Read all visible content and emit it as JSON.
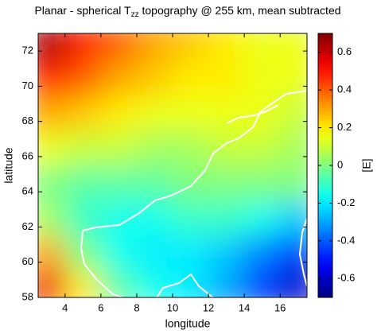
{
  "chart_data": {
    "type": "heatmap",
    "title": [
      "Planar - spherical T",
      "zz",
      " topography @ 255 km, mean subtracted"
    ],
    "xlabel": "longitude",
    "ylabel": "latitude",
    "colorbar_label": "[E]",
    "colormap": "jet",
    "x": [
      3,
      5,
      7,
      9,
      11,
      13,
      15,
      17
    ],
    "y": [
      58.5,
      60.5,
      62.5,
      64.5,
      66.5,
      68.5,
      70.5,
      72.5
    ],
    "z": [
      [
        0.55,
        0.2,
        -0.05,
        -0.15,
        -0.2,
        -0.3,
        -0.45,
        -0.6
      ],
      [
        0.3,
        0.0,
        -0.15,
        -0.2,
        -0.2,
        -0.25,
        -0.35,
        -0.45
      ],
      [
        0.05,
        -0.1,
        -0.15,
        -0.15,
        -0.1,
        -0.1,
        -0.15,
        -0.25
      ],
      [
        0.0,
        -0.05,
        -0.05,
        -0.05,
        0.0,
        0.0,
        0.0,
        0.0
      ],
      [
        0.15,
        0.1,
        0.1,
        0.05,
        0.05,
        0.1,
        0.1,
        0.05
      ],
      [
        0.3,
        0.25,
        0.2,
        0.15,
        0.15,
        0.15,
        0.15,
        0.1
      ],
      [
        0.5,
        0.4,
        0.3,
        0.25,
        0.2,
        0.2,
        0.15,
        0.15
      ],
      [
        0.65,
        0.5,
        0.4,
        0.3,
        0.25,
        0.2,
        0.15,
        0.15
      ]
    ],
    "xlim": [
      2.5,
      17.5
    ],
    "xticks": [
      4,
      6,
      8,
      10,
      12,
      14,
      16
    ],
    "ylim": [
      58,
      73
    ],
    "yticks": [
      58,
      60,
      62,
      64,
      66,
      68,
      70,
      72
    ],
    "clim": [
      -0.7,
      0.7
    ],
    "cticks": [
      -0.6,
      -0.4,
      -0.2,
      0,
      0.2,
      0.4,
      0.6
    ]
  }
}
